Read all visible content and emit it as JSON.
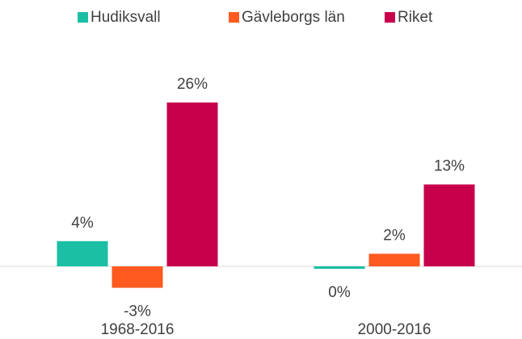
{
  "chart_data": {
    "type": "bar",
    "categories": [
      "1968-2016",
      "2000-2016"
    ],
    "series": [
      {
        "name": "Hudiksvall",
        "color": "#1bbfa4",
        "values": [
          4,
          -0.4
        ],
        "value_labels": [
          "4%",
          "0%"
        ]
      },
      {
        "name": "Gävleborgs län",
        "color": "#ff5a1f",
        "values": [
          -3.4,
          2
        ],
        "value_labels": [
          "-3%",
          "2%"
        ]
      },
      {
        "name": "Riket",
        "color": "#c8004b",
        "values": [
          26,
          13
        ],
        "value_labels": [
          "26%",
          "13%"
        ]
      }
    ]
  }
}
